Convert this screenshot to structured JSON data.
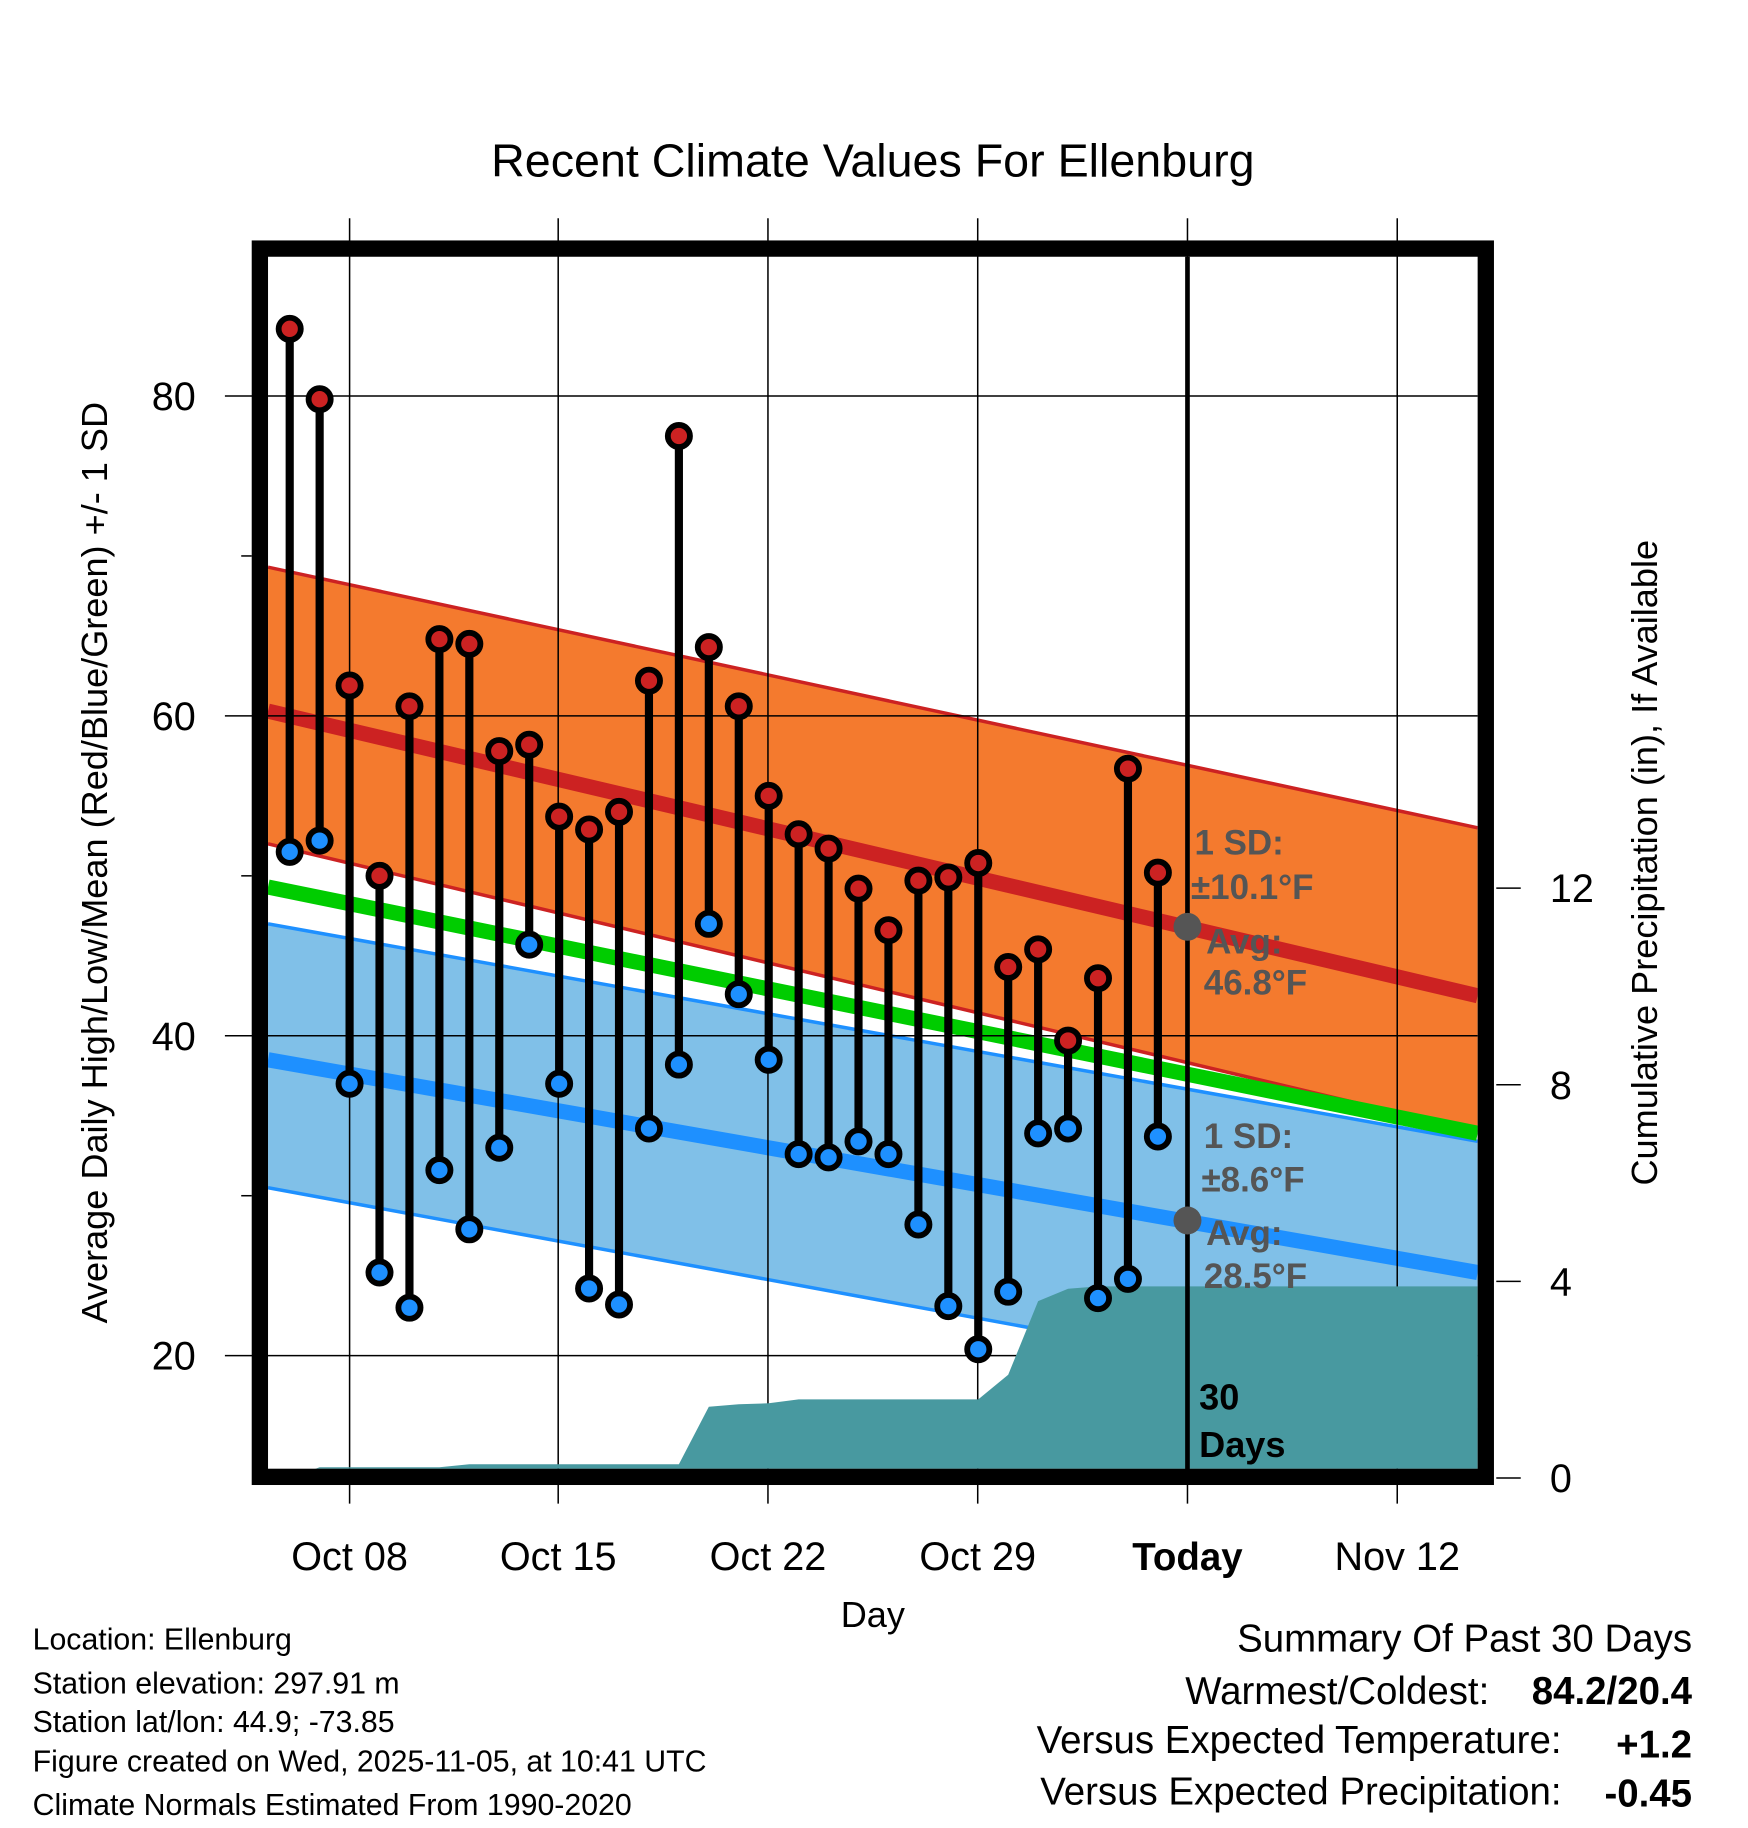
{
  "chart_data": {
    "type": "line",
    "title": "Recent Climate Values For Ellenburg",
    "xlabel": "Day",
    "ylabel": "Average Daily High/Low/Mean (Red/Blue/Green) +/- 1 SD",
    "y2label": "Cumulative Precipitation (in), If Available",
    "ylim": [
      12.9,
      88.7
    ],
    "y2lim": [
      0,
      16
    ],
    "yticks": [
      "20",
      "40",
      "60",
      "80"
    ],
    "y2ticks": [
      "0",
      "4",
      "8",
      "12"
    ],
    "xticks": [
      "Oct 08",
      "Oct 15",
      "Oct 22",
      "Oct 29",
      "Today",
      "Nov 12"
    ],
    "grid": true,
    "dates": [
      "Oct 06",
      "Oct 07",
      "Oct 08",
      "Oct 09",
      "Oct 10",
      "Oct 11",
      "Oct 12",
      "Oct 13",
      "Oct 14",
      "Oct 15",
      "Oct 16",
      "Oct 17",
      "Oct 18",
      "Oct 19",
      "Oct 20",
      "Oct 21",
      "Oct 22",
      "Oct 23",
      "Oct 24",
      "Oct 25",
      "Oct 26",
      "Oct 27",
      "Oct 28",
      "Oct 29",
      "Oct 30",
      "Oct 31",
      "Nov 01",
      "Nov 02",
      "Nov 03",
      "Nov 04"
    ],
    "series": [
      {
        "name": "Daily High",
        "color": "#cc2222",
        "values": [
          84.2,
          79.8,
          61.9,
          50.0,
          60.6,
          64.8,
          64.5,
          57.8,
          58.2,
          53.7,
          52.9,
          54.0,
          62.2,
          77.5,
          64.3,
          60.6,
          55.0,
          52.6,
          51.7,
          49.2,
          46.6,
          49.7,
          49.9,
          50.8,
          44.3,
          45.4,
          39.7,
          43.6,
          56.7,
          50.2
        ]
      },
      {
        "name": "Daily Low",
        "color": "#1e90ff",
        "values": [
          51.5,
          52.2,
          37.0,
          25.2,
          23.0,
          31.6,
          27.9,
          33.0,
          45.7,
          37.0,
          24.2,
          23.2,
          34.2,
          38.2,
          47.0,
          42.6,
          38.5,
          32.6,
          32.4,
          33.4,
          32.6,
          28.2,
          23.1,
          20.4,
          24.0,
          33.9,
          34.2,
          23.6,
          24.8,
          33.7
        ]
      },
      {
        "name": "Cumulative Precipitation (in)",
        "color": "#4899a0",
        "values": [
          0,
          0.22,
          0.22,
          0.22,
          0.22,
          0.22,
          0.28,
          0.28,
          0.28,
          0.28,
          0.28,
          0.28,
          0.28,
          0.28,
          1.45,
          1.5,
          1.52,
          1.6,
          1.6,
          1.6,
          1.6,
          1.6,
          1.6,
          1.6,
          2.1,
          3.6,
          3.85,
          3.9,
          3.9,
          3.9
        ]
      }
    ],
    "normals": {
      "date_range": [
        "Oct 05",
        "Nov 14"
      ],
      "high_mean": [
        60.3,
        42.5
      ],
      "high_plus_sd": [
        69.3,
        53.0
      ],
      "high_minus_sd": [
        52.0,
        34.0
      ],
      "mean": [
        49.3,
        33.9
      ],
      "low_mean": [
        38.5,
        25.2
      ],
      "low_plus_sd": [
        47.0,
        33.4
      ],
      "low_minus_sd": [
        30.5,
        16.6
      ]
    },
    "colors": {
      "high_band": "#f47a2e",
      "high_line": "#cc2222",
      "mean_line": "#00cc00",
      "low_band": "#80c0e8",
      "low_line": "#1e90ff",
      "precip": "#4899a0",
      "today_marker": "#555555"
    },
    "annotations": {
      "high_sd": "1 SD:",
      "high_sd_val": "±10.1°F",
      "high_avg": "Avg:",
      "high_avg_val": "46.8°F",
      "low_sd": "1 SD:",
      "low_sd_val": "±8.6°F",
      "low_avg": "Avg:",
      "low_avg_val": "28.5°F",
      "days_1": "30",
      "days_2": "Days",
      "today_high_avg": 46.8,
      "today_low_avg": 28.5
    }
  },
  "info": {
    "location": "Location: Ellenburg",
    "elevation": "Station elevation: 297.91 m",
    "latlon": "Station lat/lon: 44.9; -73.85",
    "created": "Figure created on Wed, 2025-11-05, at 10:41 UTC",
    "normals": "Climate Normals Estimated From 1990-2020"
  },
  "summary": {
    "title": "Summary Of Past 30 Days",
    "warm_cold_label": "Warmest/Coldest:",
    "warm_cold_value": "84.2/20.4",
    "temp_label": "Versus Expected Temperature:",
    "temp_value": "+1.2",
    "temp_color": "#cc2222",
    "precip_label": "Versus Expected Precipitation:",
    "precip_value": "-0.45",
    "precip_color": "#a0522d"
  }
}
